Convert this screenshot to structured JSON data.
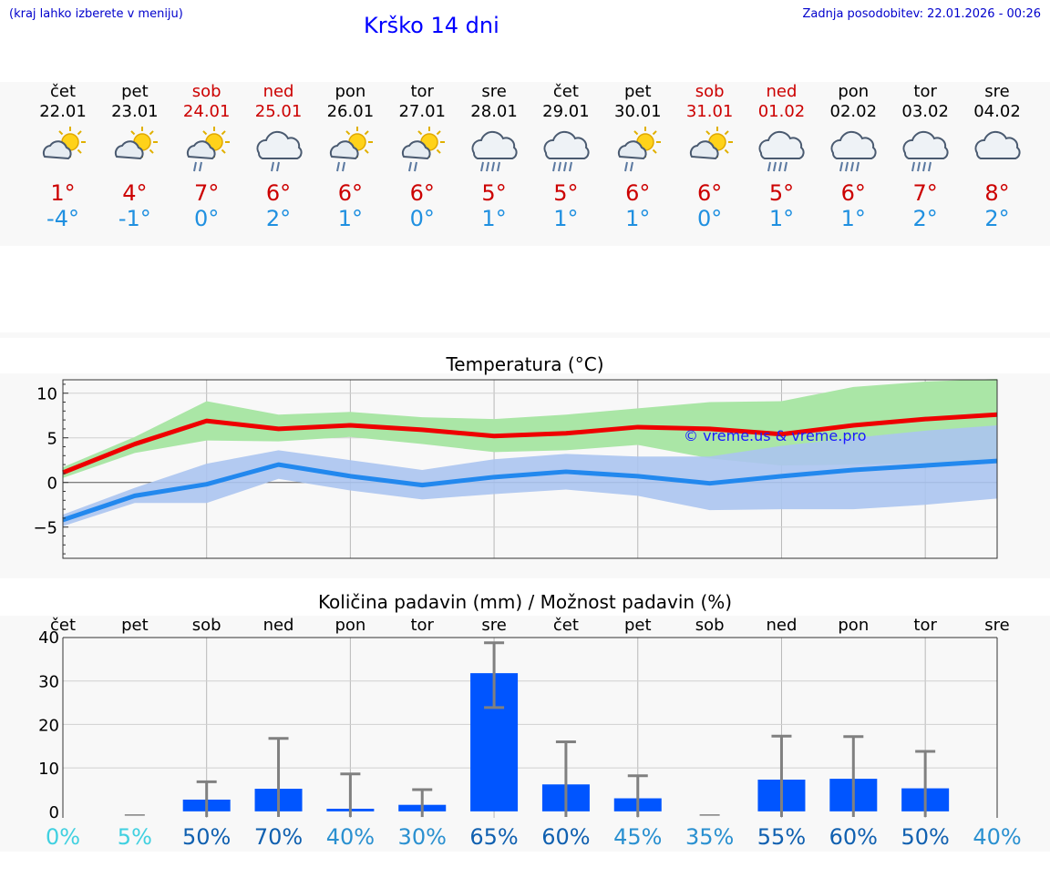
{
  "header": {
    "note": "(kraj lahko izberete v meniju)",
    "title": "Krško 14 dni",
    "updated": "Zadnja posodobitev: 22.01.2026 - 00:26"
  },
  "days": [
    {
      "name": "čet",
      "date": "22.01",
      "weekend": false,
      "icon": "partly-cloudy-icon",
      "max": "1°",
      "min": "-4°",
      "precip_pct": "0%",
      "pct_color": "#40d0e0"
    },
    {
      "name": "pet",
      "date": "23.01",
      "weekend": false,
      "icon": "partly-cloudy-icon",
      "max": "4°",
      "min": "-1°",
      "precip_pct": "5%",
      "pct_color": "#40d0e0"
    },
    {
      "name": "sob",
      "date": "24.01",
      "weekend": true,
      "icon": "sun-cloud-rain-icon",
      "max": "7°",
      "min": "0°",
      "precip_pct": "50%",
      "pct_color": "#1060b0"
    },
    {
      "name": "ned",
      "date": "25.01",
      "weekend": true,
      "icon": "cloud-rain-icon",
      "max": "6°",
      "min": "2°",
      "precip_pct": "70%",
      "pct_color": "#1060b0"
    },
    {
      "name": "pon",
      "date": "26.01",
      "weekend": false,
      "icon": "sun-cloud-rain-icon",
      "max": "6°",
      "min": "1°",
      "precip_pct": "40%",
      "pct_color": "#2a90d0"
    },
    {
      "name": "tor",
      "date": "27.01",
      "weekend": false,
      "icon": "sun-cloud-rain-icon",
      "max": "6°",
      "min": "0°",
      "precip_pct": "30%",
      "pct_color": "#2a90d0"
    },
    {
      "name": "sre",
      "date": "28.01",
      "weekend": false,
      "icon": "cloud-heavy-rain-icon",
      "max": "5°",
      "min": "1°",
      "precip_pct": "65%",
      "pct_color": "#1060b0"
    },
    {
      "name": "čet",
      "date": "29.01",
      "weekend": false,
      "icon": "cloud-heavy-rain-icon",
      "max": "5°",
      "min": "1°",
      "precip_pct": "60%",
      "pct_color": "#1060b0"
    },
    {
      "name": "pet",
      "date": "30.01",
      "weekend": false,
      "icon": "sun-cloud-rain-icon",
      "max": "6°",
      "min": "1°",
      "precip_pct": "45%",
      "pct_color": "#2a90d0"
    },
    {
      "name": "sob",
      "date": "31.01",
      "weekend": true,
      "icon": "partly-cloudy-icon",
      "max": "6°",
      "min": "0°",
      "precip_pct": "35%",
      "pct_color": "#2a90d0"
    },
    {
      "name": "ned",
      "date": "01.02",
      "weekend": true,
      "icon": "cloud-heavy-rain-icon",
      "max": "5°",
      "min": "1°",
      "precip_pct": "55%",
      "pct_color": "#1060b0"
    },
    {
      "name": "pon",
      "date": "02.02",
      "weekend": false,
      "icon": "cloud-heavy-rain-icon",
      "max": "6°",
      "min": "1°",
      "precip_pct": "60%",
      "pct_color": "#1060b0"
    },
    {
      "name": "tor",
      "date": "03.02",
      "weekend": false,
      "icon": "cloud-heavy-rain-icon",
      "max": "7°",
      "min": "2°",
      "precip_pct": "50%",
      "pct_color": "#1060b0"
    },
    {
      "name": "sre",
      "date": "04.02",
      "weekend": false,
      "icon": "cloud-overcast-icon",
      "max": "8°",
      "min": "2°",
      "precip_pct": "40%",
      "pct_color": "#2a90d0"
    }
  ],
  "chart_data": [
    {
      "type": "line",
      "title": "Temperatura (°C)",
      "watermark": "© vreme.us & vreme.pro",
      "ylim": [
        -8.5,
        11.5
      ],
      "yticks": [
        10,
        5,
        0,
        -5
      ],
      "ytick_labels": [
        "10",
        "5",
        "0",
        "−5"
      ],
      "x": [
        0,
        1,
        2,
        3,
        4,
        5,
        6,
        7,
        8,
        9,
        10,
        11,
        12,
        13
      ],
      "series": [
        {
          "name": "max",
          "color": "#ee0000",
          "values": [
            1.1,
            4.3,
            6.9,
            6.0,
            6.4,
            5.9,
            5.2,
            5.5,
            6.2,
            6.0,
            5.4,
            6.4,
            7.1,
            7.6
          ]
        },
        {
          "name": "min",
          "color": "#2288ee",
          "values": [
            -4.2,
            -1.5,
            -0.2,
            2.0,
            0.7,
            -0.3,
            0.6,
            1.2,
            0.7,
            -0.1,
            0.7,
            1.4,
            1.9,
            2.4
          ]
        }
      ],
      "bands": [
        {
          "name": "max-range",
          "color": "#aae6a6",
          "upper": [
            1.7,
            5.1,
            9.1,
            7.6,
            7.9,
            7.3,
            7.1,
            7.6,
            8.3,
            9.0,
            9.1,
            10.7,
            11.3,
            11.6
          ],
          "lower": [
            0.5,
            3.3,
            4.7,
            4.6,
            5.1,
            4.3,
            3.4,
            3.6,
            4.2,
            2.7,
            1.9,
            2.0,
            2.2,
            2.5
          ]
        },
        {
          "name": "min-range",
          "color": "#abc4ef",
          "upper": [
            -3.6,
            -0.6,
            2.1,
            3.6,
            2.5,
            1.4,
            2.6,
            3.2,
            2.9,
            2.9,
            4.1,
            5.0,
            5.8,
            6.4
          ],
          "lower": [
            -4.9,
            -2.3,
            -2.3,
            0.4,
            -0.9,
            -1.9,
            -1.3,
            -0.8,
            -1.5,
            -3.1,
            -3.0,
            -3.0,
            -2.5,
            -1.8
          ]
        }
      ]
    },
    {
      "type": "bar",
      "title": "Količina padavin (mm) / Možnost padavin (%)",
      "categories": [
        "čet",
        "pet",
        "sob",
        "ned",
        "pon",
        "tor",
        "sre",
        "čet",
        "pet",
        "sob",
        "ned",
        "pon",
        "tor",
        "sre"
      ],
      "ylim": [
        -1.5,
        40
      ],
      "yticks": [
        40,
        30,
        20,
        10,
        0
      ],
      "ytick_labels": [
        "40",
        "30",
        "20",
        "10",
        "0"
      ],
      "values": [
        0,
        0,
        2.7,
        5.2,
        0.6,
        1.5,
        31.8,
        6.2,
        3.0,
        0,
        7.3,
        7.5,
        5.3,
        0
      ],
      "err_upper": [
        0,
        0,
        6.8,
        16.8,
        8.6,
        5.0,
        38.8,
        16.0,
        8.2,
        0,
        17.3,
        17.2,
        13.8,
        0
      ],
      "err_lower": [
        0,
        0,
        0,
        0,
        0,
        0,
        23.9,
        0,
        0,
        0,
        0,
        0,
        0,
        0
      ],
      "bar_color": "#0055ff",
      "err_color": "#808080"
    }
  ]
}
